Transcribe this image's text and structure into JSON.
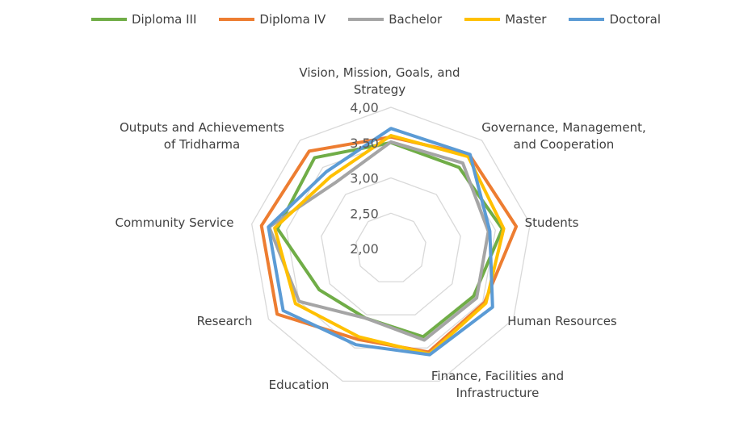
{
  "chart_data": {
    "type": "radar",
    "title": "",
    "axes": [
      [
        "Vision, Mission, Goals, and",
        "Strategy"
      ],
      [
        "Governance, Management,",
        "and Cooperation"
      ],
      [
        "Students"
      ],
      [
        "Human Resources"
      ],
      [
        "Finance, Facilities and",
        "Infrastructure"
      ],
      [
        "Education"
      ],
      [
        "Research"
      ],
      [
        "Community Service"
      ],
      [
        "Outputs and Achievements",
        "of Tridharma"
      ]
    ],
    "scale": {
      "min": 2.0,
      "max": 4.0,
      "step": 0.5
    },
    "tick_labels": [
      "2,00",
      "2,50",
      "3,00",
      "3,50",
      "4,00"
    ],
    "series": [
      {
        "name": "Diploma III",
        "color": "#70AD47",
        "values": [
          3.5,
          3.5,
          3.6,
          3.35,
          3.33,
          3.05,
          3.17,
          3.63,
          3.68
        ]
      },
      {
        "name": "Diploma IV",
        "color": "#ED7D31",
        "values": [
          3.58,
          3.73,
          3.8,
          3.53,
          3.56,
          3.37,
          3.86,
          3.86,
          3.8
        ]
      },
      {
        "name": "Bachelor",
        "color": "#A5A5A5",
        "values": [
          3.51,
          3.58,
          3.4,
          3.4,
          3.38,
          3.05,
          3.5,
          3.75,
          3.22
        ]
      },
      {
        "name": "Master",
        "color": "#FFC000",
        "values": [
          3.6,
          3.7,
          3.62,
          3.55,
          3.59,
          3.33,
          3.56,
          3.67,
          3.33
        ]
      },
      {
        "name": "Doctoral",
        "color": "#5B9BD5",
        "values": [
          3.7,
          3.74,
          3.42,
          3.66,
          3.6,
          3.45,
          3.76,
          3.76,
          3.42
        ]
      }
    ],
    "legend_position": "top",
    "grid": true
  }
}
